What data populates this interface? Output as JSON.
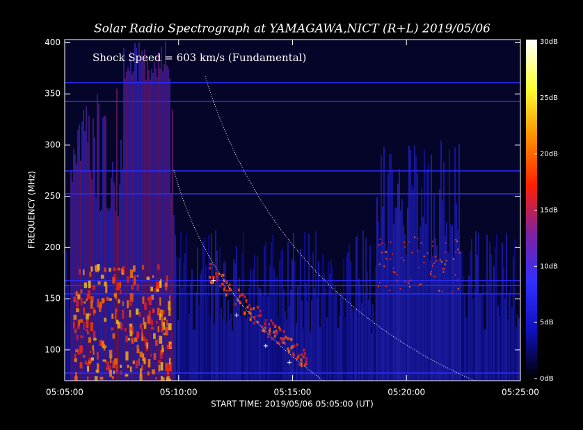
{
  "chart_data": {
    "type": "spectrogram",
    "title": "Solar Radio Spectrograph at YAMAGAWA,NICT (R+L)  2019/05/06",
    "annotation": "Shock Speed =  603 km/s (Fundamental)",
    "x_label": "START TIME: 2019/05/06 05:05:00 (UT)",
    "y_label": "FREQUENCY (MHz)",
    "xlim": [
      305,
      325
    ],
    "xticks": [
      {
        "value": 305,
        "label": "05:05:00"
      },
      {
        "value": 310,
        "label": "05:10:00"
      },
      {
        "value": 315,
        "label": "05:15:00"
      },
      {
        "value": 320,
        "label": "05:20:00"
      },
      {
        "value": 325,
        "label": "05:25:00"
      }
    ],
    "ylim": [
      70,
      403
    ],
    "yticks": [
      100,
      150,
      200,
      250,
      300,
      350,
      400
    ],
    "zlim": [
      0,
      30
    ],
    "zticks": [
      {
        "value": 0,
        "label": "0dB"
      },
      {
        "value": 5,
        "label": "5dB"
      },
      {
        "value": 10,
        "label": "10dB"
      },
      {
        "value": 15,
        "label": "15dB"
      },
      {
        "value": 20,
        "label": "20dB"
      },
      {
        "value": 25,
        "label": "25dB"
      },
      {
        "value": 30,
        "label": "30dB"
      }
    ],
    "colormap": [
      "#000000",
      "#1010c0",
      "#3030ff",
      "#8020a0",
      "#ff2000",
      "#ff9000",
      "#ffff30",
      "#ffffff"
    ],
    "fit_points": {
      "color": "#ffffff",
      "x": [
        311.53,
        312.54,
        313.82,
        314.86
      ],
      "y": [
        168,
        134,
        104,
        88
      ]
    }
  }
}
